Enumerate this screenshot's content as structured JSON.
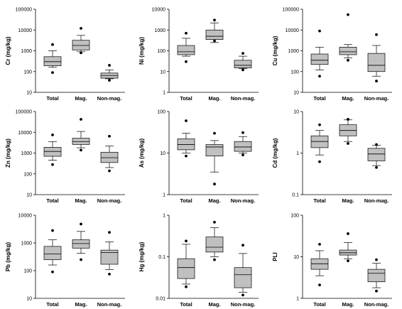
{
  "chart_data": [
    {
      "type": "box",
      "ylabel": "Cr (mg/kg)",
      "yscale": "log",
      "ylim": [
        10,
        100000
      ],
      "yticks": [
        "10",
        "100",
        "1000",
        "10000",
        "100000"
      ],
      "categories": [
        "Total",
        "Mag.",
        "Non-mag."
      ],
      "boxes": [
        {
          "whisker_low": 160,
          "q1": 190,
          "median": 300,
          "q3": 520,
          "whisker_high": 1000,
          "outliers": [
            90,
            2000
          ]
        },
        {
          "whisker_low": 900,
          "q1": 1100,
          "median": 1800,
          "q3": 3200,
          "whisker_high": 5500,
          "outliers": [
            800,
            12000
          ]
        },
        {
          "whisker_low": 45,
          "q1": 48,
          "median": 65,
          "q3": 85,
          "whisker_high": 120,
          "outliers": [
            38,
            200
          ]
        }
      ]
    },
    {
      "type": "box",
      "ylabel": "Ni (mg/kg)",
      "yscale": "log",
      "ylim": [
        1,
        10000
      ],
      "yticks": [
        "1",
        "10",
        "100",
        "1000",
        "10000"
      ],
      "categories": [
        "Total",
        "Mag.",
        "Non-mag."
      ],
      "boxes": [
        {
          "whisker_low": 55,
          "q1": 65,
          "median": 90,
          "q3": 180,
          "whisker_high": 400,
          "outliers": [
            30,
            700
          ]
        },
        {
          "whisker_low": 250,
          "q1": 350,
          "median": 500,
          "q3": 1000,
          "whisker_high": 2200,
          "outliers": [
            300,
            3000
          ]
        },
        {
          "whisker_low": 14,
          "q1": 15,
          "median": 20,
          "q3": 35,
          "whisker_high": 55,
          "outliers": [
            12,
            75
          ]
        }
      ]
    },
    {
      "type": "box",
      "ylabel": "Cu (mg/kg)",
      "yscale": "log",
      "ylim": [
        10,
        100000
      ],
      "yticks": [
        "10",
        "100",
        "1000",
        "10000",
        "100000"
      ],
      "categories": [
        "Total",
        "Mag.",
        "Non-mag."
      ],
      "boxes": [
        {
          "whisker_low": 120,
          "q1": 220,
          "median": 350,
          "q3": 700,
          "whisker_high": 1500,
          "outliers": [
            60,
            9000
          ]
        },
        {
          "whisker_low": 450,
          "q1": 650,
          "median": 900,
          "q3": 1500,
          "whisker_high": 2000,
          "outliers": [
            350,
            55000
          ]
        },
        {
          "whisker_low": 60,
          "q1": 100,
          "median": 200,
          "q3": 750,
          "whisker_high": 1800,
          "outliers": [
            35,
            6000
          ]
        }
      ]
    },
    {
      "type": "box",
      "ylabel": "Zn (mg/kg)",
      "yscale": "log",
      "ylim": [
        10,
        100000
      ],
      "yticks": [
        "10",
        "100",
        "1000",
        "10000",
        "100000"
      ],
      "categories": [
        "Total",
        "Mag.",
        "Non-mag."
      ],
      "boxes": [
        {
          "whisker_low": 450,
          "q1": 700,
          "median": 1200,
          "q3": 1900,
          "whisker_high": 3500,
          "outliers": [
            280,
            7500
          ]
        },
        {
          "whisker_low": 1800,
          "q1": 2600,
          "median": 3600,
          "q3": 5200,
          "whisker_high": 11000,
          "outliers": [
            1400,
            42000
          ]
        },
        {
          "whisker_low": 200,
          "q1": 350,
          "median": 600,
          "q3": 1100,
          "whisker_high": 2200,
          "outliers": [
            140,
            6500
          ]
        }
      ]
    },
    {
      "type": "box",
      "ylabel": "As (mg/kg)",
      "yscale": "log",
      "ylim": [
        1,
        100
      ],
      "yticks": [
        "1",
        "10",
        "100"
      ],
      "categories": [
        "Total",
        "Mag.",
        "Non-mag."
      ],
      "boxes": [
        {
          "whisker_low": 10,
          "q1": 12,
          "median": 16,
          "q3": 22,
          "whisker_high": 30,
          "outliers": [
            8.5,
            60
          ]
        },
        {
          "whisker_low": 3.5,
          "q1": 8.5,
          "median": 14,
          "q3": 16,
          "whisker_high": 20,
          "outliers": [
            1.8,
            30
          ]
        },
        {
          "whisker_low": 10,
          "q1": 11,
          "median": 14,
          "q3": 19,
          "whisker_high": 25,
          "outliers": [
            9,
            31
          ]
        }
      ]
    },
    {
      "type": "box",
      "ylabel": "Cd (mg/kg)",
      "yscale": "log",
      "ylim": [
        0.1,
        10
      ],
      "yticks": [
        "0.1",
        "1",
        "10"
      ],
      "categories": [
        "Total",
        "Mag.",
        "Non-mag."
      ],
      "boxes": [
        {
          "whisker_low": 0.9,
          "q1": 1.35,
          "median": 1.9,
          "q3": 2.6,
          "whisker_high": 3.5,
          "outliers": [
            0.62,
            4.8
          ]
        },
        {
          "whisker_low": 1.9,
          "q1": 2.6,
          "median": 3.5,
          "q3": 4.8,
          "whisker_high": 6.3,
          "outliers": [
            1.7,
            6.5
          ]
        },
        {
          "whisker_low": 0.5,
          "q1": 0.65,
          "median": 0.95,
          "q3": 1.3,
          "whisker_high": 1.55,
          "outliers": [
            0.45,
            1.6
          ]
        }
      ]
    },
    {
      "type": "box",
      "ylabel": "Pb (mg/kg)",
      "yscale": "log",
      "ylim": [
        10,
        10000
      ],
      "yticks": [
        "10",
        "100",
        "1000",
        "10000"
      ],
      "categories": [
        "Total",
        "Mag.",
        "Non-mag."
      ],
      "boxes": [
        {
          "whisker_low": 160,
          "q1": 250,
          "median": 400,
          "q3": 750,
          "whisker_high": 1300,
          "outliers": [
            90,
            2800
          ]
        },
        {
          "whisker_low": 420,
          "q1": 650,
          "median": 950,
          "q3": 1300,
          "whisker_high": 2600,
          "outliers": [
            250,
            4800
          ]
        },
        {
          "whisker_low": 110,
          "q1": 170,
          "median": 450,
          "q3": 550,
          "whisker_high": 1100,
          "outliers": [
            75,
            2400
          ]
        }
      ]
    },
    {
      "type": "box",
      "ylabel": "Hg (mg/kg)",
      "yscale": "log",
      "ylim": [
        0.01,
        1
      ],
      "yticks": [
        "0.01",
        "0.1",
        "1"
      ],
      "categories": [
        "Total",
        "Mag.",
        "Non-mag."
      ],
      "boxes": [
        {
          "whisker_low": 0.022,
          "q1": 0.03,
          "median": 0.055,
          "q3": 0.09,
          "whisker_high": 0.2,
          "outliers": [
            0.019,
            0.24
          ]
        },
        {
          "whisker_low": 0.1,
          "q1": 0.13,
          "median": 0.17,
          "q3": 0.3,
          "whisker_high": 0.5,
          "outliers": [
            0.085,
            0.68
          ]
        },
        {
          "whisker_low": 0.014,
          "q1": 0.018,
          "median": 0.037,
          "q3": 0.055,
          "whisker_high": 0.12,
          "outliers": [
            0.012,
            0.19
          ]
        }
      ]
    },
    {
      "type": "box",
      "ylabel": "PLI",
      "yscale": "log",
      "ylim": [
        1,
        100
      ],
      "yticks": [
        "1",
        "10",
        "100"
      ],
      "categories": [
        "Total",
        "Mag.",
        "Non-mag."
      ],
      "boxes": [
        {
          "whisker_low": 3.5,
          "q1": 5,
          "median": 6.8,
          "q3": 9,
          "whisker_high": 14,
          "outliers": [
            2.1,
            20
          ]
        },
        {
          "whisker_low": 9,
          "q1": 11,
          "median": 12.5,
          "q3": 14.5,
          "whisker_high": 22,
          "outliers": [
            8,
            36
          ]
        },
        {
          "whisker_low": 1.8,
          "q1": 2.5,
          "median": 4,
          "q3": 5,
          "whisker_high": 7,
          "outliers": [
            1.5,
            8.5
          ]
        }
      ]
    }
  ],
  "colors": {
    "box_fill": "#c0c0c0",
    "line": "#000000",
    "outlier": "#000000"
  }
}
